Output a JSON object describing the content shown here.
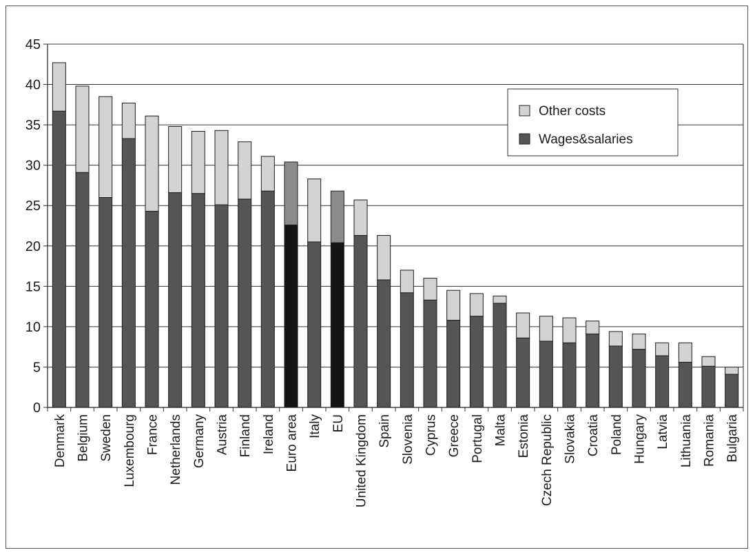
{
  "chart_data": {
    "type": "bar",
    "stacked": true,
    "categories": [
      "Denmark",
      "Belgium",
      "Sweden",
      "Luxembourg",
      "France",
      "Netherlands",
      "Germany",
      "Austria",
      "Finland",
      "Ireland",
      "Euro area",
      "Italy",
      "EU",
      "United Kingdom",
      "Spain",
      "Slovenia",
      "Cyprus",
      "Greece",
      "Portugal",
      "Malta",
      "Estonia",
      "Czech Republic",
      "Slovakia",
      "Croatia",
      "Poland",
      "Hungary",
      "Latvia",
      "Lithuania",
      "Romania",
      "Bulgaria"
    ],
    "series": [
      {
        "name": "Wages&salaries",
        "color": "#555555",
        "highlight_color": "#141414",
        "values": [
          36.7,
          29.1,
          26.0,
          33.3,
          24.3,
          26.6,
          26.5,
          25.1,
          25.8,
          26.8,
          22.6,
          20.5,
          20.4,
          21.3,
          15.8,
          14.2,
          13.3,
          10.8,
          11.3,
          12.9,
          8.6,
          8.2,
          8.0,
          9.1,
          7.6,
          7.2,
          6.4,
          5.6,
          5.1,
          4.1
        ]
      },
      {
        "name": "Other costs",
        "color": "#d3d3d3",
        "highlight_color": "#8c8c8c",
        "values": [
          6.0,
          10.7,
          12.5,
          4.4,
          11.8,
          8.2,
          7.7,
          9.2,
          7.1,
          4.3,
          7.8,
          7.8,
          6.4,
          4.4,
          5.5,
          2.8,
          2.7,
          3.7,
          2.8,
          0.9,
          3.1,
          3.1,
          3.1,
          1.6,
          1.8,
          1.9,
          1.6,
          2.4,
          1.2,
          0.9
        ]
      }
    ],
    "highlighted_categories": [
      "Euro area",
      "EU"
    ],
    "ylim": [
      0,
      45
    ],
    "yticks": [
      0,
      5,
      10,
      15,
      20,
      25,
      30,
      35,
      40,
      45
    ],
    "title": "",
    "xlabel": "",
    "ylabel": "",
    "grid": "horizontal",
    "legend": {
      "placement": "top-right",
      "entries": [
        "Other costs",
        "Wages&salaries"
      ]
    }
  }
}
